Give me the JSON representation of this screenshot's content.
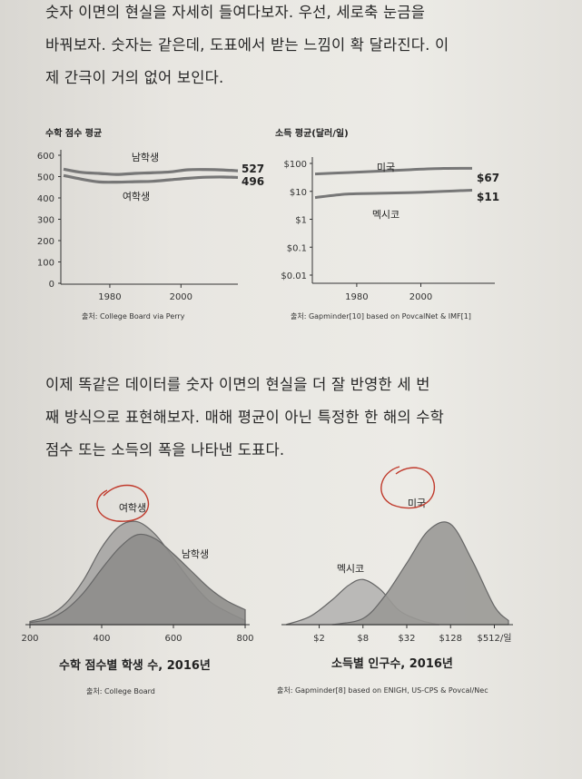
{
  "text": {
    "para1": [
      "숫자 이면의 현실을 자세히 들여다보자. 우선, 세로축 눈금을",
      "바꿔보자. 숫자는 같은데, 도표에서 받는 느낌이 확 달라진다. 이",
      "제 간극이 거의 없어 보인다."
    ],
    "para2": [
      "이제 똑같은 데이터를 숫자 이면의 현실을 더 잘 반영한 세 번",
      "째 방식으로 표현해보자. 매해 평균이 아닌 특정한 한 해의 수학",
      "점수 또는 소득의 폭을 나타낸 도표다."
    ]
  },
  "chart_data": [
    {
      "type": "line",
      "title": "수학 점수 평균",
      "source": "출처: College Board via Perry",
      "xticks": [
        1980,
        2000
      ],
      "yticks": [
        0,
        100,
        200,
        300,
        400,
        500,
        600
      ],
      "ylim": [
        0,
        600
      ],
      "xlim": [
        1967,
        2016
      ],
      "series": [
        {
          "name": "남학생",
          "end_label": "527",
          "x": [
            1967,
            1972,
            1977,
            1982,
            1987,
            1992,
            1997,
            2002,
            2007,
            2012,
            2016
          ],
          "values": [
            535,
            520,
            515,
            510,
            515,
            518,
            522,
            532,
            533,
            531,
            527
          ]
        },
        {
          "name": "여학생",
          "end_label": "496",
          "x": [
            1967,
            1972,
            1977,
            1982,
            1987,
            1992,
            1997,
            2002,
            2007,
            2012,
            2016
          ],
          "values": [
            505,
            488,
            475,
            474,
            476,
            478,
            485,
            492,
            497,
            498,
            496
          ]
        }
      ]
    },
    {
      "type": "line",
      "title": "소득 평균(달러/일)",
      "source": "출처: Gapminder[10] based on PovcalNet & IMF[1]",
      "yscale": "log",
      "xticks": [
        1980,
        2000
      ],
      "yticks": [
        0.01,
        0.1,
        1,
        10,
        100
      ],
      "ytick_labels": [
        "$0.01",
        "$0.1",
        "$1",
        "$10",
        "$100"
      ],
      "xlim": [
        1967,
        2016
      ],
      "series": [
        {
          "name": "미국",
          "end_label": "$67",
          "x": [
            1967,
            1977,
            1987,
            1997,
            2007,
            2016
          ],
          "values": [
            42,
            47,
            53,
            60,
            66,
            67
          ]
        },
        {
          "name": "멕시코",
          "end_label": "$11",
          "x": [
            1967,
            1977,
            1987,
            1997,
            2007,
            2016
          ],
          "values": [
            6,
            8,
            8.5,
            9,
            10,
            11
          ]
        }
      ]
    },
    {
      "type": "area",
      "caption": "수학 점수별 학생 수, 2016년",
      "source": "출처: College Board",
      "xticks": [
        200,
        400,
        600,
        800
      ],
      "xlim": [
        200,
        800
      ],
      "series": [
        {
          "name": "여학생",
          "x": [
            200,
            250,
            300,
            350,
            400,
            450,
            500,
            550,
            600,
            650,
            700,
            750,
            800
          ],
          "values": [
            3,
            8,
            20,
            42,
            72,
            92,
            96,
            84,
            62,
            40,
            22,
            12,
            4
          ]
        },
        {
          "name": "남학생",
          "x": [
            200,
            250,
            300,
            350,
            400,
            450,
            500,
            550,
            600,
            650,
            700,
            750,
            800
          ],
          "values": [
            2,
            5,
            14,
            30,
            52,
            72,
            84,
            80,
            66,
            50,
            34,
            22,
            14
          ]
        }
      ]
    },
    {
      "type": "area",
      "caption": "소득별 인구수, 2016년",
      "source": "출처: Gapminder[8] based on ENIGH, US-CPS & Povcal/Nec",
      "xscale": "log",
      "xticks": [
        2,
        8,
        32,
        128,
        512
      ],
      "xtick_labels": [
        "$2",
        "$8",
        "$32",
        "$128",
        "$512/일"
      ],
      "xlim": [
        0.7,
        800
      ],
      "series": [
        {
          "name": "멕시코",
          "x": [
            0.7,
            1.5,
            3,
            5,
            8,
            14,
            25,
            50,
            90
          ],
          "values": [
            0,
            8,
            24,
            38,
            44,
            34,
            14,
            4,
            0
          ]
        },
        {
          "name": "미국",
          "x": [
            3,
            8,
            16,
            32,
            64,
            128,
            256,
            512,
            800
          ],
          "values": [
            0,
            6,
            28,
            60,
            92,
            98,
            62,
            18,
            4
          ]
        }
      ]
    }
  ]
}
